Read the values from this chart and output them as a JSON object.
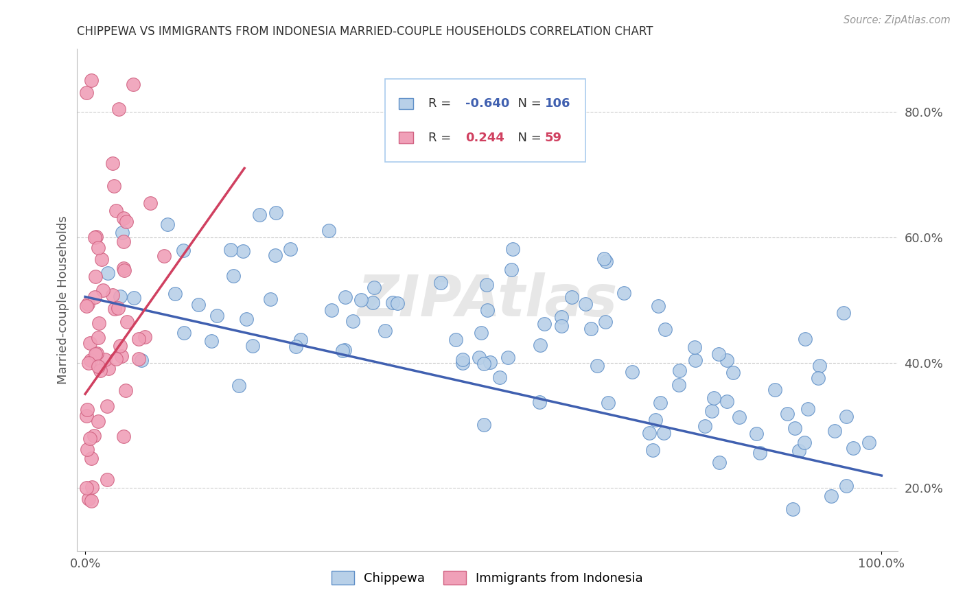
{
  "title": "CHIPPEWA VS IMMIGRANTS FROM INDONESIA MARRIED-COUPLE HOUSEHOLDS CORRELATION CHART",
  "source": "Source: ZipAtlas.com",
  "ylabel": "Married-couple Households",
  "watermark": "ZIPAtlas",
  "legend_blue_label": "Chippewa",
  "legend_pink_label": "Immigrants from Indonesia",
  "blue_R": "-0.640",
  "blue_N": "106",
  "pink_R": "0.244",
  "pink_N": "59",
  "blue_scatter_color": "#b8d0e8",
  "blue_edge_color": "#6090c8",
  "pink_scatter_color": "#f0a0b8",
  "pink_edge_color": "#d06080",
  "blue_line_color": "#4060b0",
  "pink_line_color": "#d04060",
  "grid_color": "#cccccc",
  "title_color": "#333333",
  "source_color": "#999999",
  "ylabel_color": "#555555",
  "tick_color": "#555555",
  "watermark_color": "#d8d8d8"
}
